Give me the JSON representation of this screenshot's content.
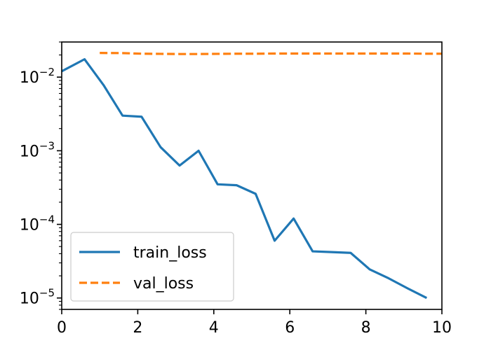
{
  "chart_data": {
    "type": "line",
    "title": "",
    "xlabel": "",
    "ylabel": "",
    "xlim": [
      0,
      10
    ],
    "ylim": [
      7e-06,
      0.03
    ],
    "yscale": "log",
    "grid": false,
    "legend_position": "lower-left",
    "x_ticks": [
      "0",
      "2",
      "4",
      "6",
      "8",
      "10"
    ],
    "y_ticks": [
      {
        "value": 1e-05,
        "base": "10",
        "exponent": "−5"
      },
      {
        "value": 0.0001,
        "base": "10",
        "exponent": "−4"
      },
      {
        "value": 0.001,
        "base": "10",
        "exponent": "−3"
      },
      {
        "value": 0.01,
        "base": "10",
        "exponent": "−2"
      }
    ],
    "series": [
      {
        "name": "train_loss",
        "color": "#1f77b4",
        "line_style": "solid",
        "x": [
          0.0,
          0.6,
          1.1,
          1.6,
          2.1,
          2.6,
          3.1,
          3.6,
          4.1,
          4.6,
          5.1,
          5.6,
          6.1,
          6.6,
          7.1,
          7.6,
          8.1,
          8.6,
          9.1,
          9.6
        ],
        "y": [
          0.012,
          0.0175,
          0.0078,
          0.003,
          0.0029,
          0.00112,
          0.00063,
          0.001,
          0.00035,
          0.00034,
          0.00026,
          6e-05,
          0.00012,
          4.3e-05,
          4.2e-05,
          4.1e-05,
          2.45e-05,
          1.85e-05,
          1.35e-05,
          1e-05
        ]
      },
      {
        "name": "val_loss",
        "color": "#ff7f0e",
        "line_style": "dashed",
        "x": [
          1.0,
          1.6,
          2.1,
          2.6,
          3.1,
          3.6,
          4.1,
          4.6,
          5.1,
          5.6,
          6.1,
          6.6,
          7.1,
          7.6,
          8.1,
          8.6,
          9.1,
          9.6,
          10.0
        ],
        "y": [
          0.0213,
          0.0212,
          0.0208,
          0.0207,
          0.0206,
          0.0206,
          0.0207,
          0.0208,
          0.0208,
          0.0209,
          0.0209,
          0.0209,
          0.0209,
          0.0209,
          0.0209,
          0.0209,
          0.0209,
          0.0208,
          0.0208
        ]
      }
    ]
  }
}
